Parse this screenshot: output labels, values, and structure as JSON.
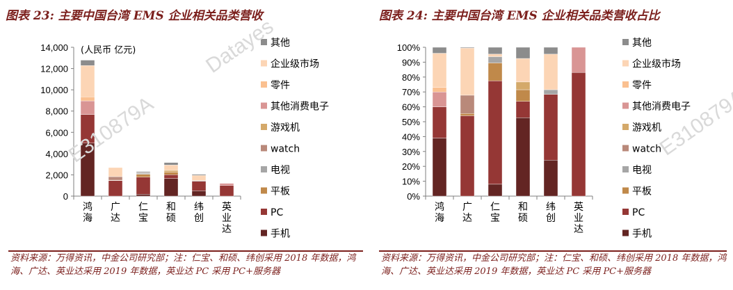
{
  "charts_meta": [
    {
      "title": "图表 23: 主要中国台湾 EMS 企业相关品类营收",
      "note": "资料来源：万得资讯，中金公司研究部；注：仁宝、和硕、纬创采用 2018 年数据，鸿海、广达、英业达采用 2019 年数据，英业达 PC 采用 PC+服务器"
    },
    {
      "title": "图表 24: 主要中国台湾 EMS 企业相关品类营收占比",
      "note": "资料来源：万得资讯，中金公司研究部；注：仁宝、和硕、纬创采用 2018 年数据，鸿海、广达、英业达采用 2019 年数据，英业达 PC 采用 PC+服务器"
    }
  ],
  "watermarks": [
    "Datayes",
    "E310879A"
  ],
  "chart_data": [
    {
      "type": "bar",
      "stacked": true,
      "title": "",
      "unit_label": "(人民币 亿元)",
      "categories": [
        "鸿海",
        "广达",
        "仁宝",
        "和硕",
        "纬创",
        "英业达"
      ],
      "ylim": [
        0,
        14000
      ],
      "yticks": [
        0,
        2000,
        4000,
        6000,
        8000,
        10000,
        12000,
        14000
      ],
      "ytick_labels": [
        "0",
        "2,000",
        "4,000",
        "6,000",
        "8,000",
        "10,000",
        "12,000",
        "14,000"
      ],
      "grid": false,
      "legend": "right",
      "series": [
        {
          "name": "手机",
          "color": "#632523",
          "values": [
            4990,
            0,
            180,
            1660,
            500,
            0
          ]
        },
        {
          "name": "PC",
          "color": "#953735",
          "values": [
            2690,
            1460,
            1600,
            350,
            900,
            1000
          ]
        },
        {
          "name": "平板",
          "color": "#c0894a",
          "values": [
            0,
            40,
            280,
            250,
            0,
            0
          ]
        },
        {
          "name": "电视",
          "color": "#a6a6a6",
          "values": [
            0,
            0,
            100,
            0,
            65,
            0
          ]
        },
        {
          "name": "watch",
          "color": "#b9897a",
          "values": [
            0,
            330,
            0,
            0,
            0,
            0
          ]
        },
        {
          "name": "游戏机",
          "color": "#d4a96a",
          "values": [
            0,
            0,
            0,
            160,
            0,
            0
          ]
        },
        {
          "name": "其他消费电子",
          "color": "#d99594",
          "values": [
            1280,
            0,
            0,
            0,
            0,
            200
          ]
        },
        {
          "name": "零件",
          "color": "#fac090",
          "values": [
            380,
            0,
            0,
            0,
            0,
            0
          ]
        },
        {
          "name": "企业级市场",
          "color": "#fcd5b5",
          "values": [
            2940,
            860,
            40,
            500,
            490,
            0
          ]
        },
        {
          "name": "其他",
          "color": "#8c8c8c",
          "values": [
            510,
            10,
            100,
            240,
            95,
            0
          ]
        }
      ]
    },
    {
      "type": "bar",
      "stacked": true,
      "title": "",
      "categories": [
        "鸿海",
        "广达",
        "仁宝",
        "和硕",
        "纬创",
        "英业达"
      ],
      "ylim": [
        0,
        100
      ],
      "yticks": [
        0,
        10,
        20,
        30,
        40,
        50,
        60,
        70,
        80,
        90,
        100
      ],
      "ytick_labels": [
        "0%",
        "10%",
        "20%",
        "30%",
        "40%",
        "50%",
        "60%",
        "70%",
        "80%",
        "90%",
        "100%"
      ],
      "grid": false,
      "legend": "right",
      "series": [
        {
          "name": "手机",
          "color": "#632523",
          "values": [
            39,
            0,
            8,
            52.7,
            24.2,
            0
          ]
        },
        {
          "name": "PC",
          "color": "#953735",
          "values": [
            21,
            54,
            69.5,
            11,
            44.2,
            83.1
          ]
        },
        {
          "name": "平板",
          "color": "#c0894a",
          "values": [
            0,
            1.5,
            12,
            7.8,
            0,
            0
          ]
        },
        {
          "name": "电视",
          "color": "#a6a6a6",
          "values": [
            0,
            0,
            4.2,
            0,
            3.1,
            0
          ]
        },
        {
          "name": "watch",
          "color": "#b9897a",
          "values": [
            0,
            12.3,
            0,
            0,
            0,
            0
          ]
        },
        {
          "name": "游戏机",
          "color": "#d4a96a",
          "values": [
            0,
            0,
            0,
            5.2,
            0,
            0
          ]
        },
        {
          "name": "其他消费电子",
          "color": "#d99594",
          "values": [
            10,
            0,
            0,
            0,
            0,
            16.9
          ]
        },
        {
          "name": "零件",
          "color": "#fac090",
          "values": [
            3,
            0,
            0,
            0,
            0,
            0
          ]
        },
        {
          "name": "企业级市场",
          "color": "#fcd5b5",
          "values": [
            23,
            31.7,
            1.7,
            15.8,
            23.9,
            0
          ]
        },
        {
          "name": "其他",
          "color": "#8c8c8c",
          "values": [
            4,
            0.5,
            4.6,
            7.5,
            4.6,
            0
          ]
        }
      ]
    }
  ]
}
